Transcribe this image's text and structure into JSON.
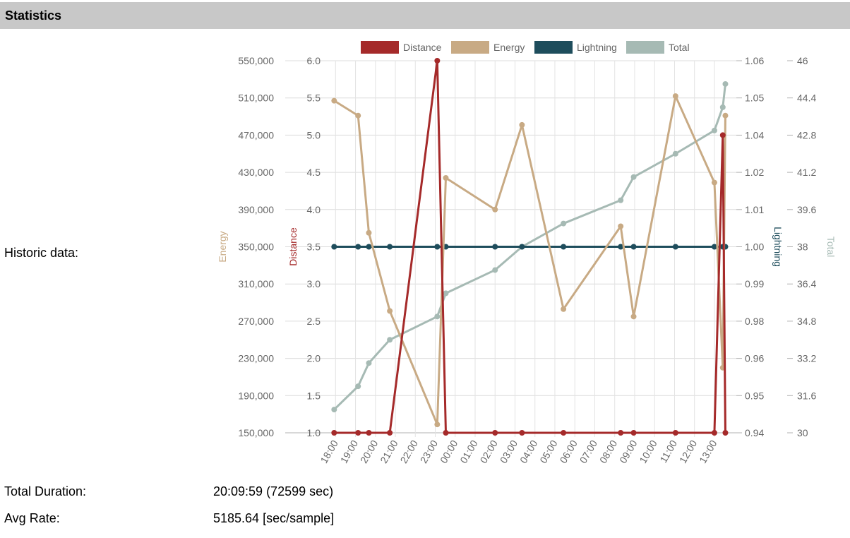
{
  "section": {
    "title": "Statistics"
  },
  "rows": {
    "historic_label": "Historic data:",
    "duration_label": "Total Duration:",
    "duration_value": "20:09:59 (72599 sec)",
    "rate_label": "Avg Rate:",
    "rate_value": "5185.64 [sec/sample]"
  },
  "chart_data": {
    "type": "line",
    "x_tick_labels": [
      "18:00",
      "19:00",
      "20:00",
      "21:00",
      "22:00",
      "23:00",
      "00:00",
      "01:00",
      "02:00",
      "03:00",
      "04:00",
      "05:00",
      "06:00",
      "07:00",
      "08:00",
      "09:00",
      "10:00",
      "11:00",
      "12:00",
      "13:00"
    ],
    "x_range_hours": [
      17.6,
      14.1
    ],
    "grid": true,
    "legend_position": "top",
    "axes": {
      "energy": {
        "label": "Energy",
        "side": "left",
        "range": [
          150000,
          550000
        ],
        "ticks": [
          "150,000",
          "190,000",
          "230,000",
          "270,000",
          "310,000",
          "350,000",
          "390,000",
          "430,000",
          "470,000",
          "510,000",
          "550,000"
        ],
        "color": "#c8aa84"
      },
      "distance": {
        "label": "Distance",
        "side": "left",
        "range": [
          1.0,
          6.0
        ],
        "ticks": [
          "1.0",
          "1.5",
          "2.0",
          "2.5",
          "3.0",
          "3.5",
          "4.0",
          "4.5",
          "5.0",
          "5.5",
          "6.0"
        ],
        "color": "#a52a2a"
      },
      "lightning": {
        "label": "Lightning",
        "side": "right",
        "range": [
          0.94,
          1.06
        ],
        "ticks": [
          "0.94",
          "0.95",
          "0.96",
          "0.98",
          "0.99",
          "1.00",
          "1.01",
          "1.02",
          "1.04",
          "1.05",
          "1.06"
        ],
        "color": "#1e4d5c"
      },
      "total": {
        "label": "Total",
        "side": "right",
        "range": [
          30,
          46
        ],
        "ticks": [
          "30",
          "31.6",
          "33.2",
          "34.8",
          "36.4",
          "38",
          "39.6",
          "41.2",
          "42.8",
          "44.4",
          "46"
        ],
        "color": "#a6bab4"
      }
    },
    "series": [
      {
        "name": "Distance",
        "axis": "distance",
        "color": "#a52a2a",
        "points": [
          [
            17.93,
            1.0
          ],
          [
            19.13,
            1.0
          ],
          [
            19.67,
            1.0
          ],
          [
            20.72,
            1.0
          ],
          [
            23.1,
            6.0
          ],
          [
            23.53,
            1.0
          ],
          [
            2.0,
            1.0
          ],
          [
            3.35,
            1.0
          ],
          [
            5.43,
            1.0
          ],
          [
            8.3,
            1.0
          ],
          [
            8.95,
            1.0
          ],
          [
            11.05,
            1.0
          ],
          [
            13.0,
            1.0
          ],
          [
            13.42,
            5.0
          ],
          [
            13.55,
            1.0
          ]
        ]
      },
      {
        "name": "Energy",
        "axis": "energy",
        "color": "#c8aa84",
        "points": [
          [
            17.93,
            507000
          ],
          [
            19.13,
            491000
          ],
          [
            19.67,
            365000
          ],
          [
            20.72,
            281000
          ],
          [
            23.1,
            159000
          ],
          [
            23.53,
            424000
          ],
          [
            2.0,
            390000
          ],
          [
            3.35,
            481000
          ],
          [
            5.43,
            283000
          ],
          [
            8.3,
            372000
          ],
          [
            8.95,
            275000
          ],
          [
            11.05,
            512000
          ],
          [
            13.0,
            419000
          ],
          [
            13.42,
            220000
          ],
          [
            13.55,
            491000
          ]
        ]
      },
      {
        "name": "Lightning",
        "axis": "lightning",
        "color": "#1e4d5c",
        "points": [
          [
            17.93,
            1.0
          ],
          [
            19.13,
            1.0
          ],
          [
            19.67,
            1.0
          ],
          [
            20.72,
            1.0
          ],
          [
            23.1,
            1.0
          ],
          [
            23.53,
            1.0
          ],
          [
            2.0,
            1.0
          ],
          [
            3.35,
            1.0
          ],
          [
            5.43,
            1.0
          ],
          [
            8.3,
            1.0
          ],
          [
            8.95,
            1.0
          ],
          [
            11.05,
            1.0
          ],
          [
            13.0,
            1.0
          ],
          [
            13.42,
            1.0
          ],
          [
            13.55,
            1.0
          ]
        ]
      },
      {
        "name": "Total",
        "axis": "total",
        "color": "#a6bab4",
        "points": [
          [
            17.93,
            31.0
          ],
          [
            19.13,
            32.0
          ],
          [
            19.67,
            33.0
          ],
          [
            20.72,
            34.0
          ],
          [
            23.1,
            35.0
          ],
          [
            23.53,
            36.0
          ],
          [
            2.0,
            37.0
          ],
          [
            3.35,
            38.0
          ],
          [
            5.43,
            39.0
          ],
          [
            8.3,
            40.0
          ],
          [
            8.95,
            41.0
          ],
          [
            11.05,
            42.0
          ],
          [
            13.0,
            43.0
          ],
          [
            13.42,
            44.0
          ],
          [
            13.55,
            45.0
          ]
        ]
      }
    ]
  }
}
